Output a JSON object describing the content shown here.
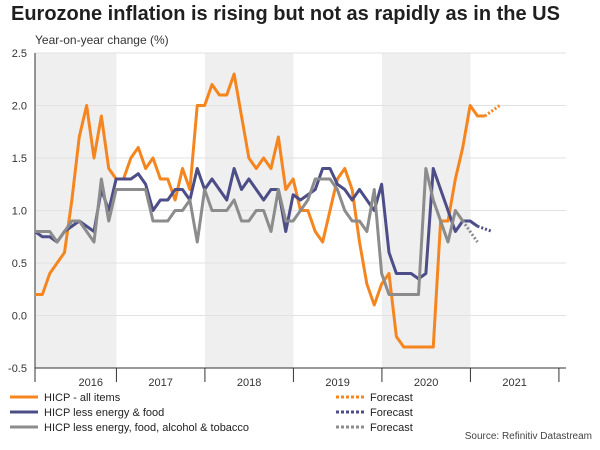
{
  "chart_data": {
    "type": "line",
    "title": "Eurozone inflation is rising but not as rapidly as in the US",
    "ylabel": "Year-on-year change (%)",
    "xlabel": "",
    "ylim": [
      -0.5,
      2.5
    ],
    "yticks": [
      "2.5",
      "2.0",
      "1.5",
      "1.0",
      "0.5",
      "0.0",
      "-0.5"
    ],
    "year_labels": [
      {
        "label": "2016",
        "mid": 2016.21
      },
      {
        "label": "2017",
        "mid": 2017.0
      },
      {
        "label": "2018",
        "mid": 2018.0
      },
      {
        "label": "2019",
        "mid": 2019.0
      },
      {
        "label": "2020",
        "mid": 2020.0
      },
      {
        "label": "2021",
        "mid": 2021.0
      }
    ],
    "xrange": [
      2015.58,
      2021.58
    ],
    "shaded_spans": [
      [
        2015.58,
        2016.5
      ],
      [
        2017.5,
        2018.5
      ],
      [
        2019.5,
        2020.5
      ]
    ],
    "series": [
      {
        "name": "HICP - all items",
        "color": "#f5861f",
        "start": 2015.58,
        "values": [
          0.2,
          0.2,
          0.4,
          0.5,
          0.6,
          1.1,
          1.7,
          2.0,
          1.5,
          1.9,
          1.4,
          1.3,
          1.3,
          1.5,
          1.6,
          1.4,
          1.5,
          1.3,
          1.3,
          1.1,
          1.4,
          1.2,
          2.0,
          2.0,
          2.2,
          2.1,
          2.1,
          2.3,
          1.9,
          1.5,
          1.4,
          1.5,
          1.4,
          1.7,
          1.2,
          1.3,
          1.0,
          1.0,
          0.8,
          0.7,
          1.0,
          1.3,
          1.4,
          1.2,
          0.7,
          0.3,
          0.1,
          0.3,
          0.4,
          -0.2,
          -0.3,
          -0.3,
          -0.3,
          -0.3,
          -0.3,
          0.9,
          0.9,
          1.3,
          1.6,
          2.0,
          1.9,
          1.9
        ],
        "forecast": [
          1.9,
          2.0
        ]
      },
      {
        "name": "HICP less energy & food",
        "color": "#4d4e87",
        "start": 2015.58,
        "values": [
          0.8,
          0.75,
          0.75,
          0.7,
          0.8,
          0.85,
          0.9,
          0.85,
          0.8,
          1.2,
          1.0,
          1.3,
          1.3,
          1.3,
          1.35,
          1.25,
          1.0,
          1.1,
          1.1,
          1.2,
          1.2,
          1.1,
          1.4,
          1.2,
          1.3,
          1.2,
          1.1,
          1.4,
          1.2,
          1.3,
          1.2,
          1.1,
          1.2,
          1.2,
          0.8,
          1.15,
          1.1,
          1.15,
          1.2,
          1.4,
          1.4,
          1.25,
          1.2,
          1.1,
          1.2,
          1.1,
          1.0,
          1.25,
          0.6,
          0.4,
          0.4,
          0.4,
          0.35,
          0.4,
          1.4,
          1.2,
          1.0,
          0.8,
          0.9,
          0.9,
          0.85
        ],
        "forecast": [
          0.85,
          0.8
        ]
      },
      {
        "name": "HICP less energy, food, alcohol & tobacco",
        "color": "#8c8c8c",
        "start": 2015.58,
        "values": [
          0.8,
          0.8,
          0.8,
          0.7,
          0.8,
          0.9,
          0.9,
          0.8,
          0.7,
          1.3,
          0.9,
          1.2,
          1.2,
          1.2,
          1.2,
          1.2,
          0.9,
          0.9,
          0.9,
          1.0,
          1.0,
          1.1,
          0.7,
          1.2,
          1.0,
          1.0,
          1.0,
          1.1,
          0.9,
          0.9,
          1.0,
          1.0,
          0.8,
          1.2,
          0.9,
          0.9,
          1.0,
          1.1,
          1.3,
          1.3,
          1.3,
          1.2,
          1.0,
          0.9,
          0.9,
          0.8,
          1.2,
          0.4,
          0.2,
          0.2,
          0.2,
          0.2,
          0.2,
          1.4,
          1.1,
          0.9,
          0.7,
          1.0,
          0.9
        ],
        "forecast": [
          0.9,
          0.7
        ]
      }
    ],
    "legend": {
      "position": "bottom",
      "items": [
        {
          "label": "HICP - all items",
          "color": "#f5861f",
          "style": "solid"
        },
        {
          "label": "Forecast",
          "color": "#f5861f",
          "style": "dotted"
        },
        {
          "label": "HICP less energy & food",
          "color": "#4d4e87",
          "style": "solid"
        },
        {
          "label": "Forecast",
          "color": "#4d4e87",
          "style": "dotted"
        },
        {
          "label": "HICP less energy, food, alcohol & tobacco",
          "color": "#8c8c8c",
          "style": "solid"
        },
        {
          "label": "Forecast",
          "color": "#8c8c8c",
          "style": "dotted"
        }
      ]
    }
  },
  "source": "Source: Refinitiv Datastream"
}
